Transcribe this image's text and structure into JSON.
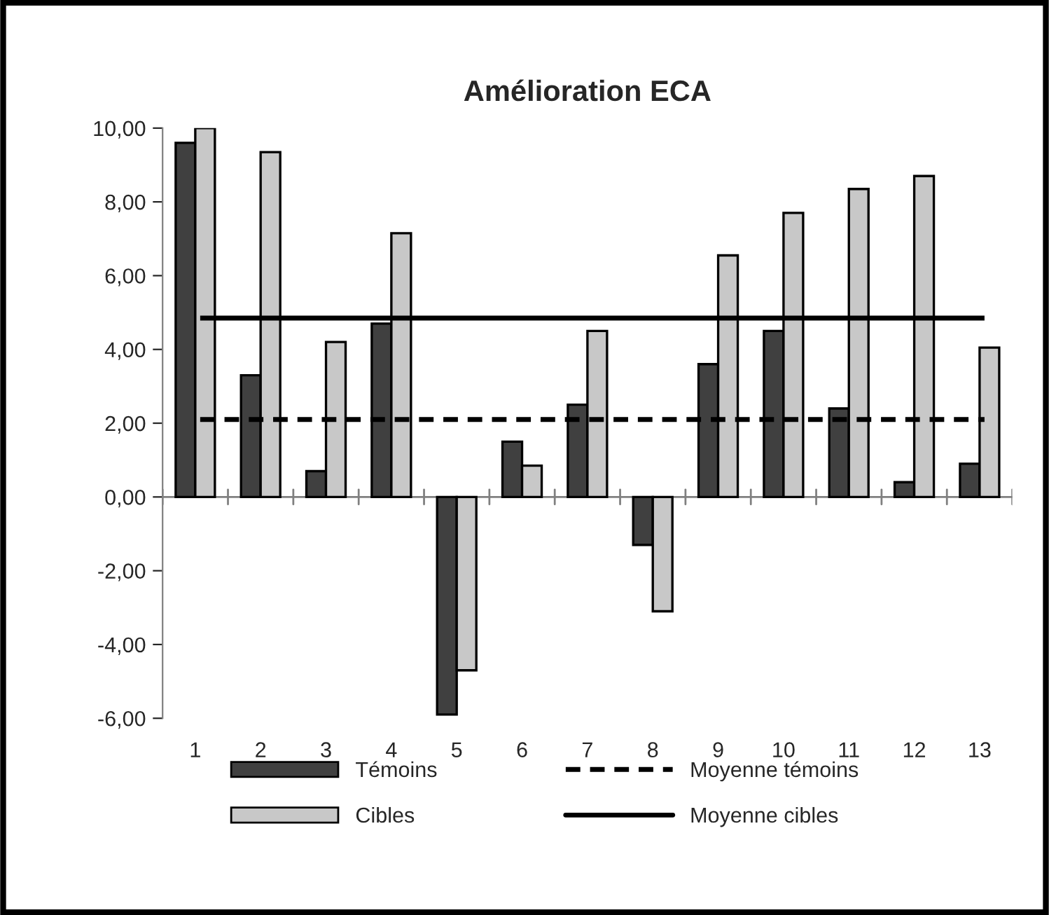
{
  "chart_data": {
    "type": "bar",
    "title": "Amélioration ECA",
    "categories": [
      "1",
      "2",
      "3",
      "4",
      "5",
      "6",
      "7",
      "8",
      "9",
      "10",
      "11",
      "12",
      "13"
    ],
    "series": [
      {
        "name": "Témoins",
        "color": "#404040",
        "values": [
          9.6,
          3.3,
          0.7,
          4.7,
          -5.9,
          1.5,
          2.5,
          -1.3,
          3.6,
          4.5,
          2.4,
          0.4,
          0.9
        ]
      },
      {
        "name": "Cibles",
        "color": "#c8c8c8",
        "values": [
          10.0,
          9.35,
          4.2,
          7.15,
          -4.7,
          0.85,
          4.5,
          -3.1,
          6.55,
          7.7,
          8.35,
          8.7,
          4.05
        ]
      },
      {
        "name": "Moyenne témoins",
        "type": "line",
        "line_style": "dashed",
        "color": "#000000",
        "values": [
          2.1,
          2.1,
          2.1,
          2.1,
          2.1,
          2.1,
          2.1,
          2.1,
          2.1,
          2.1,
          2.1,
          2.1,
          2.1
        ]
      },
      {
        "name": "Moyenne cibles",
        "type": "line",
        "line_style": "solid",
        "color": "#000000",
        "values": [
          4.85,
          4.85,
          4.85,
          4.85,
          4.85,
          4.85,
          4.85,
          4.85,
          4.85,
          4.85,
          4.85,
          4.85,
          4.85
        ]
      }
    ],
    "ylim": [
      -6,
      10
    ],
    "yticks": [
      {
        "value": -6,
        "label": "-6,00"
      },
      {
        "value": -4,
        "label": "-4,00"
      },
      {
        "value": -2,
        "label": "-2,00"
      },
      {
        "value": 0,
        "label": "0,00"
      },
      {
        "value": 2,
        "label": "2,00"
      },
      {
        "value": 4,
        "label": "4,00"
      },
      {
        "value": 6,
        "label": "6,00"
      },
      {
        "value": 8,
        "label": "8,00"
      },
      {
        "value": 10,
        "label": "10,00"
      }
    ],
    "legend": "bottom"
  }
}
